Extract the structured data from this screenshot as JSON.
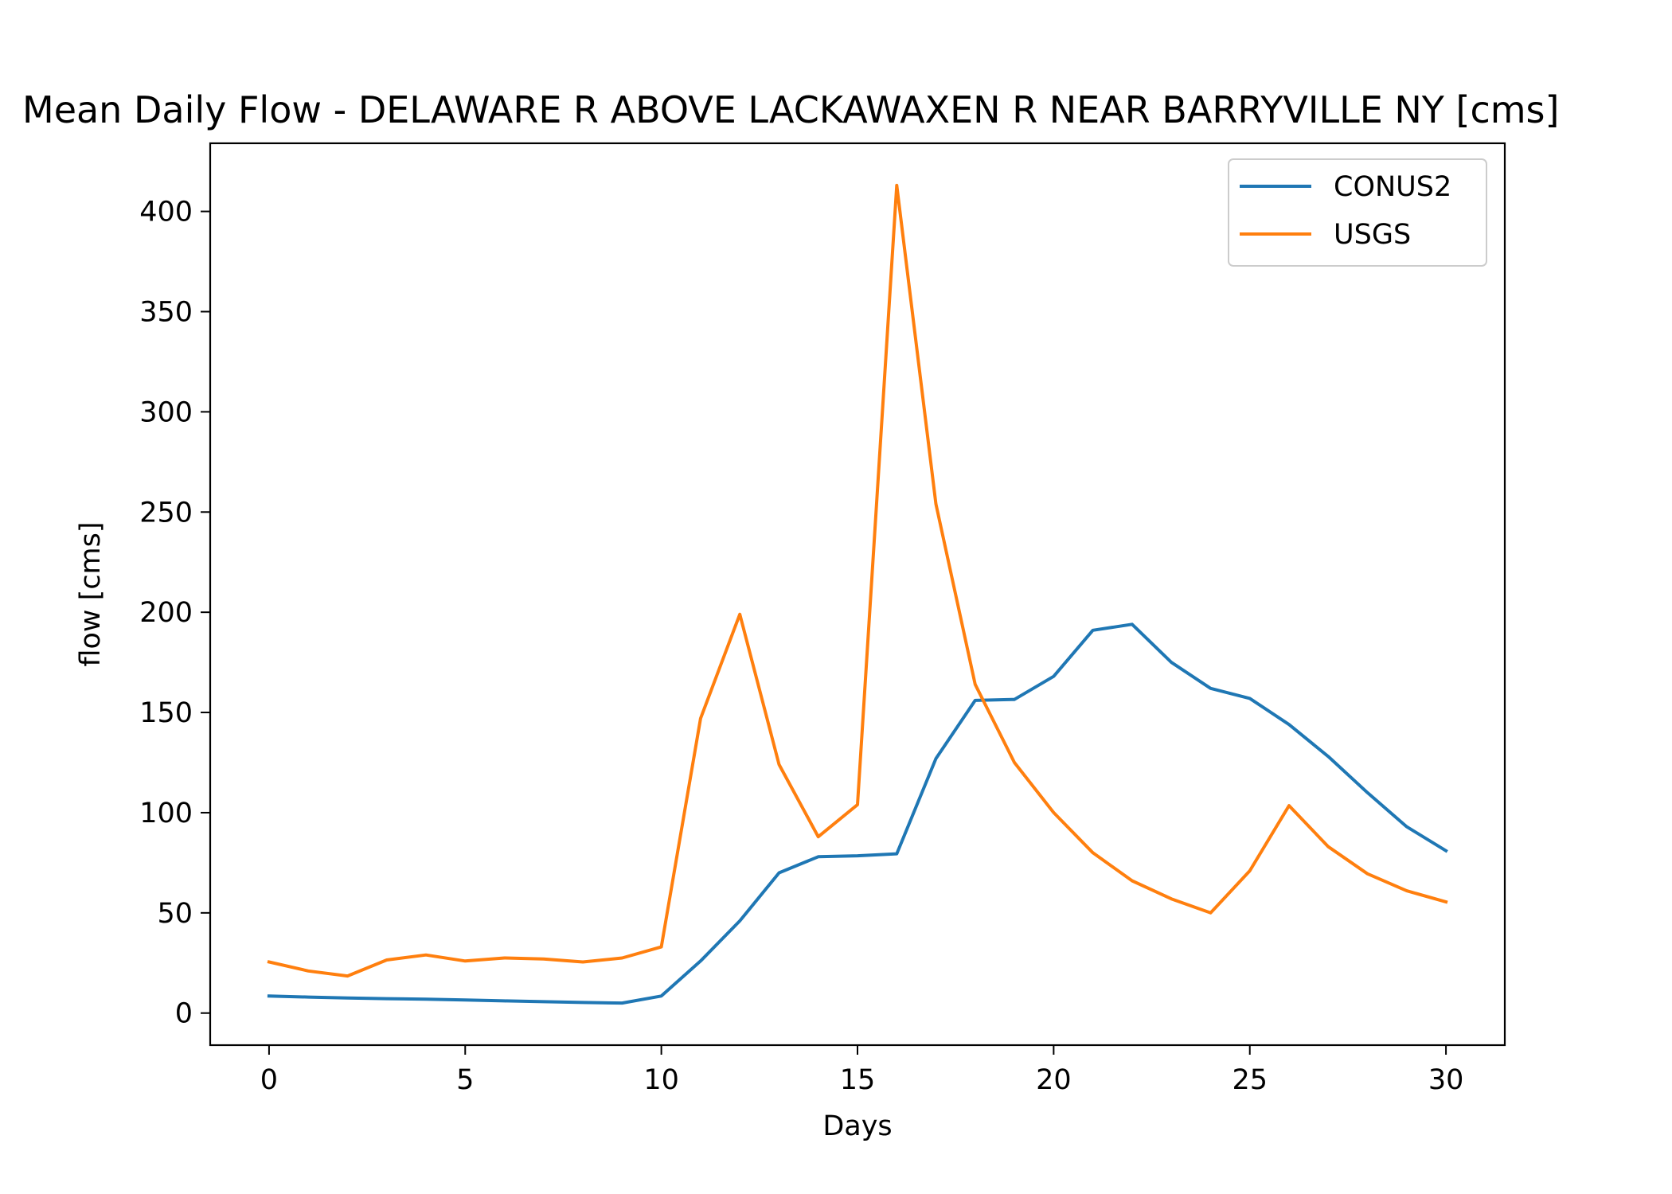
{
  "chart_data": {
    "type": "line",
    "title": "Mean Daily Flow - DELAWARE R ABOVE LACKAWAXEN R NEAR BARRYVILLE NY [cms]",
    "xlabel": "Days",
    "ylabel": "flow [cms]",
    "xlim": [
      -1.5,
      31.5
    ],
    "ylim": [
      -16,
      434
    ],
    "xticks": [
      0,
      5,
      10,
      15,
      20,
      25,
      30
    ],
    "yticks": [
      0,
      50,
      100,
      150,
      200,
      250,
      300,
      350,
      400
    ],
    "grid": false,
    "legend_position": "top-right",
    "x": [
      0,
      1,
      2,
      3,
      4,
      5,
      6,
      7,
      8,
      9,
      10,
      11,
      12,
      13,
      14,
      15,
      16,
      17,
      18,
      19,
      20,
      21,
      22,
      23,
      24,
      25,
      26,
      27,
      28,
      29,
      30
    ],
    "series": [
      {
        "name": "CONUS2",
        "color": "#1f77b4",
        "values": [
          8.5,
          8,
          7.5,
          7.2,
          6.9,
          6.5,
          6.1,
          5.7,
          5.3,
          5,
          8.5,
          26,
          46,
          70,
          78,
          78.5,
          79.5,
          127,
          156,
          156.5,
          168,
          191,
          194,
          175,
          162,
          157,
          144,
          128,
          110,
          93,
          81
        ]
      },
      {
        "name": "USGS",
        "color": "#ff7f0e",
        "values": [
          25.5,
          21,
          18.5,
          26.5,
          29,
          26,
          27.5,
          27,
          25.5,
          27.5,
          33,
          147,
          199,
          124,
          88,
          104,
          413,
          254,
          164,
          125,
          100,
          80,
          66,
          57,
          50,
          71,
          103.5,
          83,
          69.5,
          61,
          55.5
        ]
      }
    ]
  }
}
